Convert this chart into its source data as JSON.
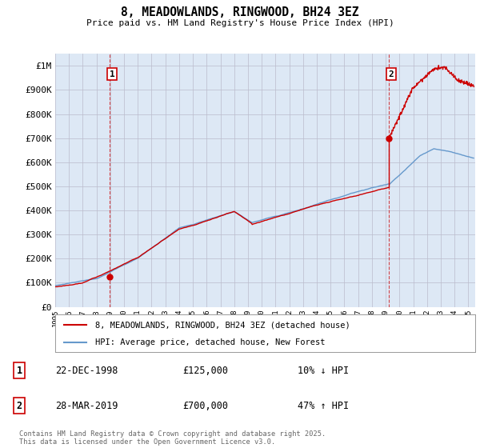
{
  "title": "8, MEADOWLANDS, RINGWOOD, BH24 3EZ",
  "subtitle": "Price paid vs. HM Land Registry's House Price Index (HPI)",
  "ylabel_ticks": [
    "£0",
    "£100K",
    "£200K",
    "£300K",
    "£400K",
    "£500K",
    "£600K",
    "£700K",
    "£800K",
    "£900K",
    "£1M"
  ],
  "ytick_values": [
    0,
    100000,
    200000,
    300000,
    400000,
    500000,
    600000,
    700000,
    800000,
    900000,
    1000000
  ],
  "ylim": [
    0,
    1050000
  ],
  "xlim_start": 1995.0,
  "xlim_end": 2025.5,
  "sale1_x": 1998.97,
  "sale1_y": 125000,
  "sale2_x": 2019.24,
  "sale2_y": 700000,
  "annotation1_label": "1",
  "annotation2_label": "2",
  "legend_line1": "8, MEADOWLANDS, RINGWOOD, BH24 3EZ (detached house)",
  "legend_line2": "HPI: Average price, detached house, New Forest",
  "table_row1": [
    "1",
    "22-DEC-1998",
    "£125,000",
    "10% ↓ HPI"
  ],
  "table_row2": [
    "2",
    "28-MAR-2019",
    "£700,000",
    "47% ↑ HPI"
  ],
  "footer": "Contains HM Land Registry data © Crown copyright and database right 2025.\nThis data is licensed under the Open Government Licence v3.0.",
  "line_color_red": "#cc0000",
  "line_color_blue": "#6699cc",
  "chart_bg": "#dde8f5",
  "grid_color": "#bbbbcc",
  "background_color": "#ffffff",
  "annotation_box_color": "#cc0000"
}
